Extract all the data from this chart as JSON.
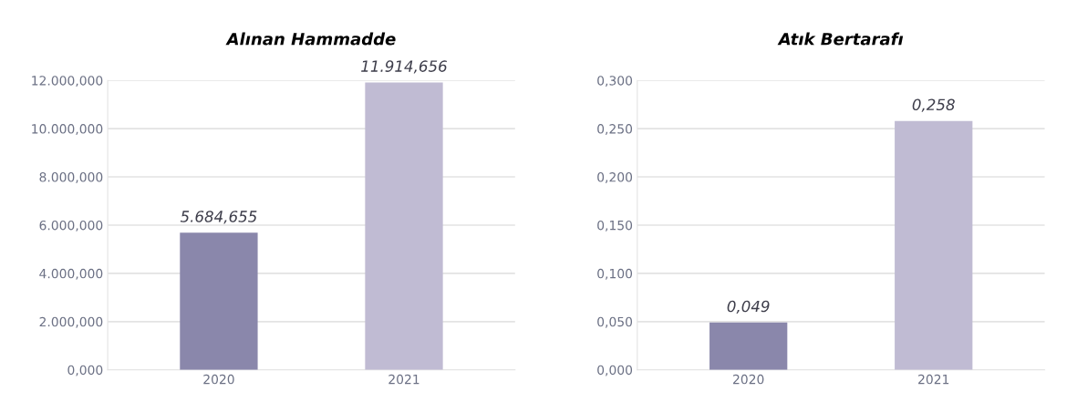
{
  "chart_data": [
    {
      "type": "bar",
      "title": "Alınan Hammadde",
      "categories": [
        "2020",
        "2021"
      ],
      "values": [
        5684.655,
        11914.656
      ],
      "colors": [
        "#8a87ab",
        "#c0bbd3"
      ],
      "value_labels": [
        "5.684,655",
        "11.914,656"
      ],
      "ylim": [
        0,
        12000
      ],
      "yticks": [
        {
          "value": 0,
          "label": "0,000"
        },
        {
          "value": 2000,
          "label": "2.000,000"
        },
        {
          "value": 4000,
          "label": "4.000,000"
        },
        {
          "value": 6000,
          "label": "6.000,000"
        },
        {
          "value": 8000,
          "label": "8.000,000"
        },
        {
          "value": 10000,
          "label": "10.000,000"
        },
        {
          "value": 12000,
          "label": "12.000,000"
        }
      ],
      "grid": "y"
    },
    {
      "type": "bar",
      "title": "Atık Bertarafı",
      "categories": [
        "2020",
        "2021"
      ],
      "values": [
        0.049,
        0.258
      ],
      "colors": [
        "#8a87ab",
        "#c0bbd3"
      ],
      "value_labels": [
        "0,049",
        "0,258"
      ],
      "ylim": [
        0,
        0.3
      ],
      "yticks": [
        {
          "value": 0,
          "label": "0,000"
        },
        {
          "value": 0.05,
          "label": "0,050"
        },
        {
          "value": 0.1,
          "label": "0,100"
        },
        {
          "value": 0.15,
          "label": "0,150"
        },
        {
          "value": 0.2,
          "label": "0,200"
        },
        {
          "value": 0.25,
          "label": "0,250"
        },
        {
          "value": 0.3,
          "label": "0,300"
        }
      ],
      "grid": "y"
    }
  ]
}
